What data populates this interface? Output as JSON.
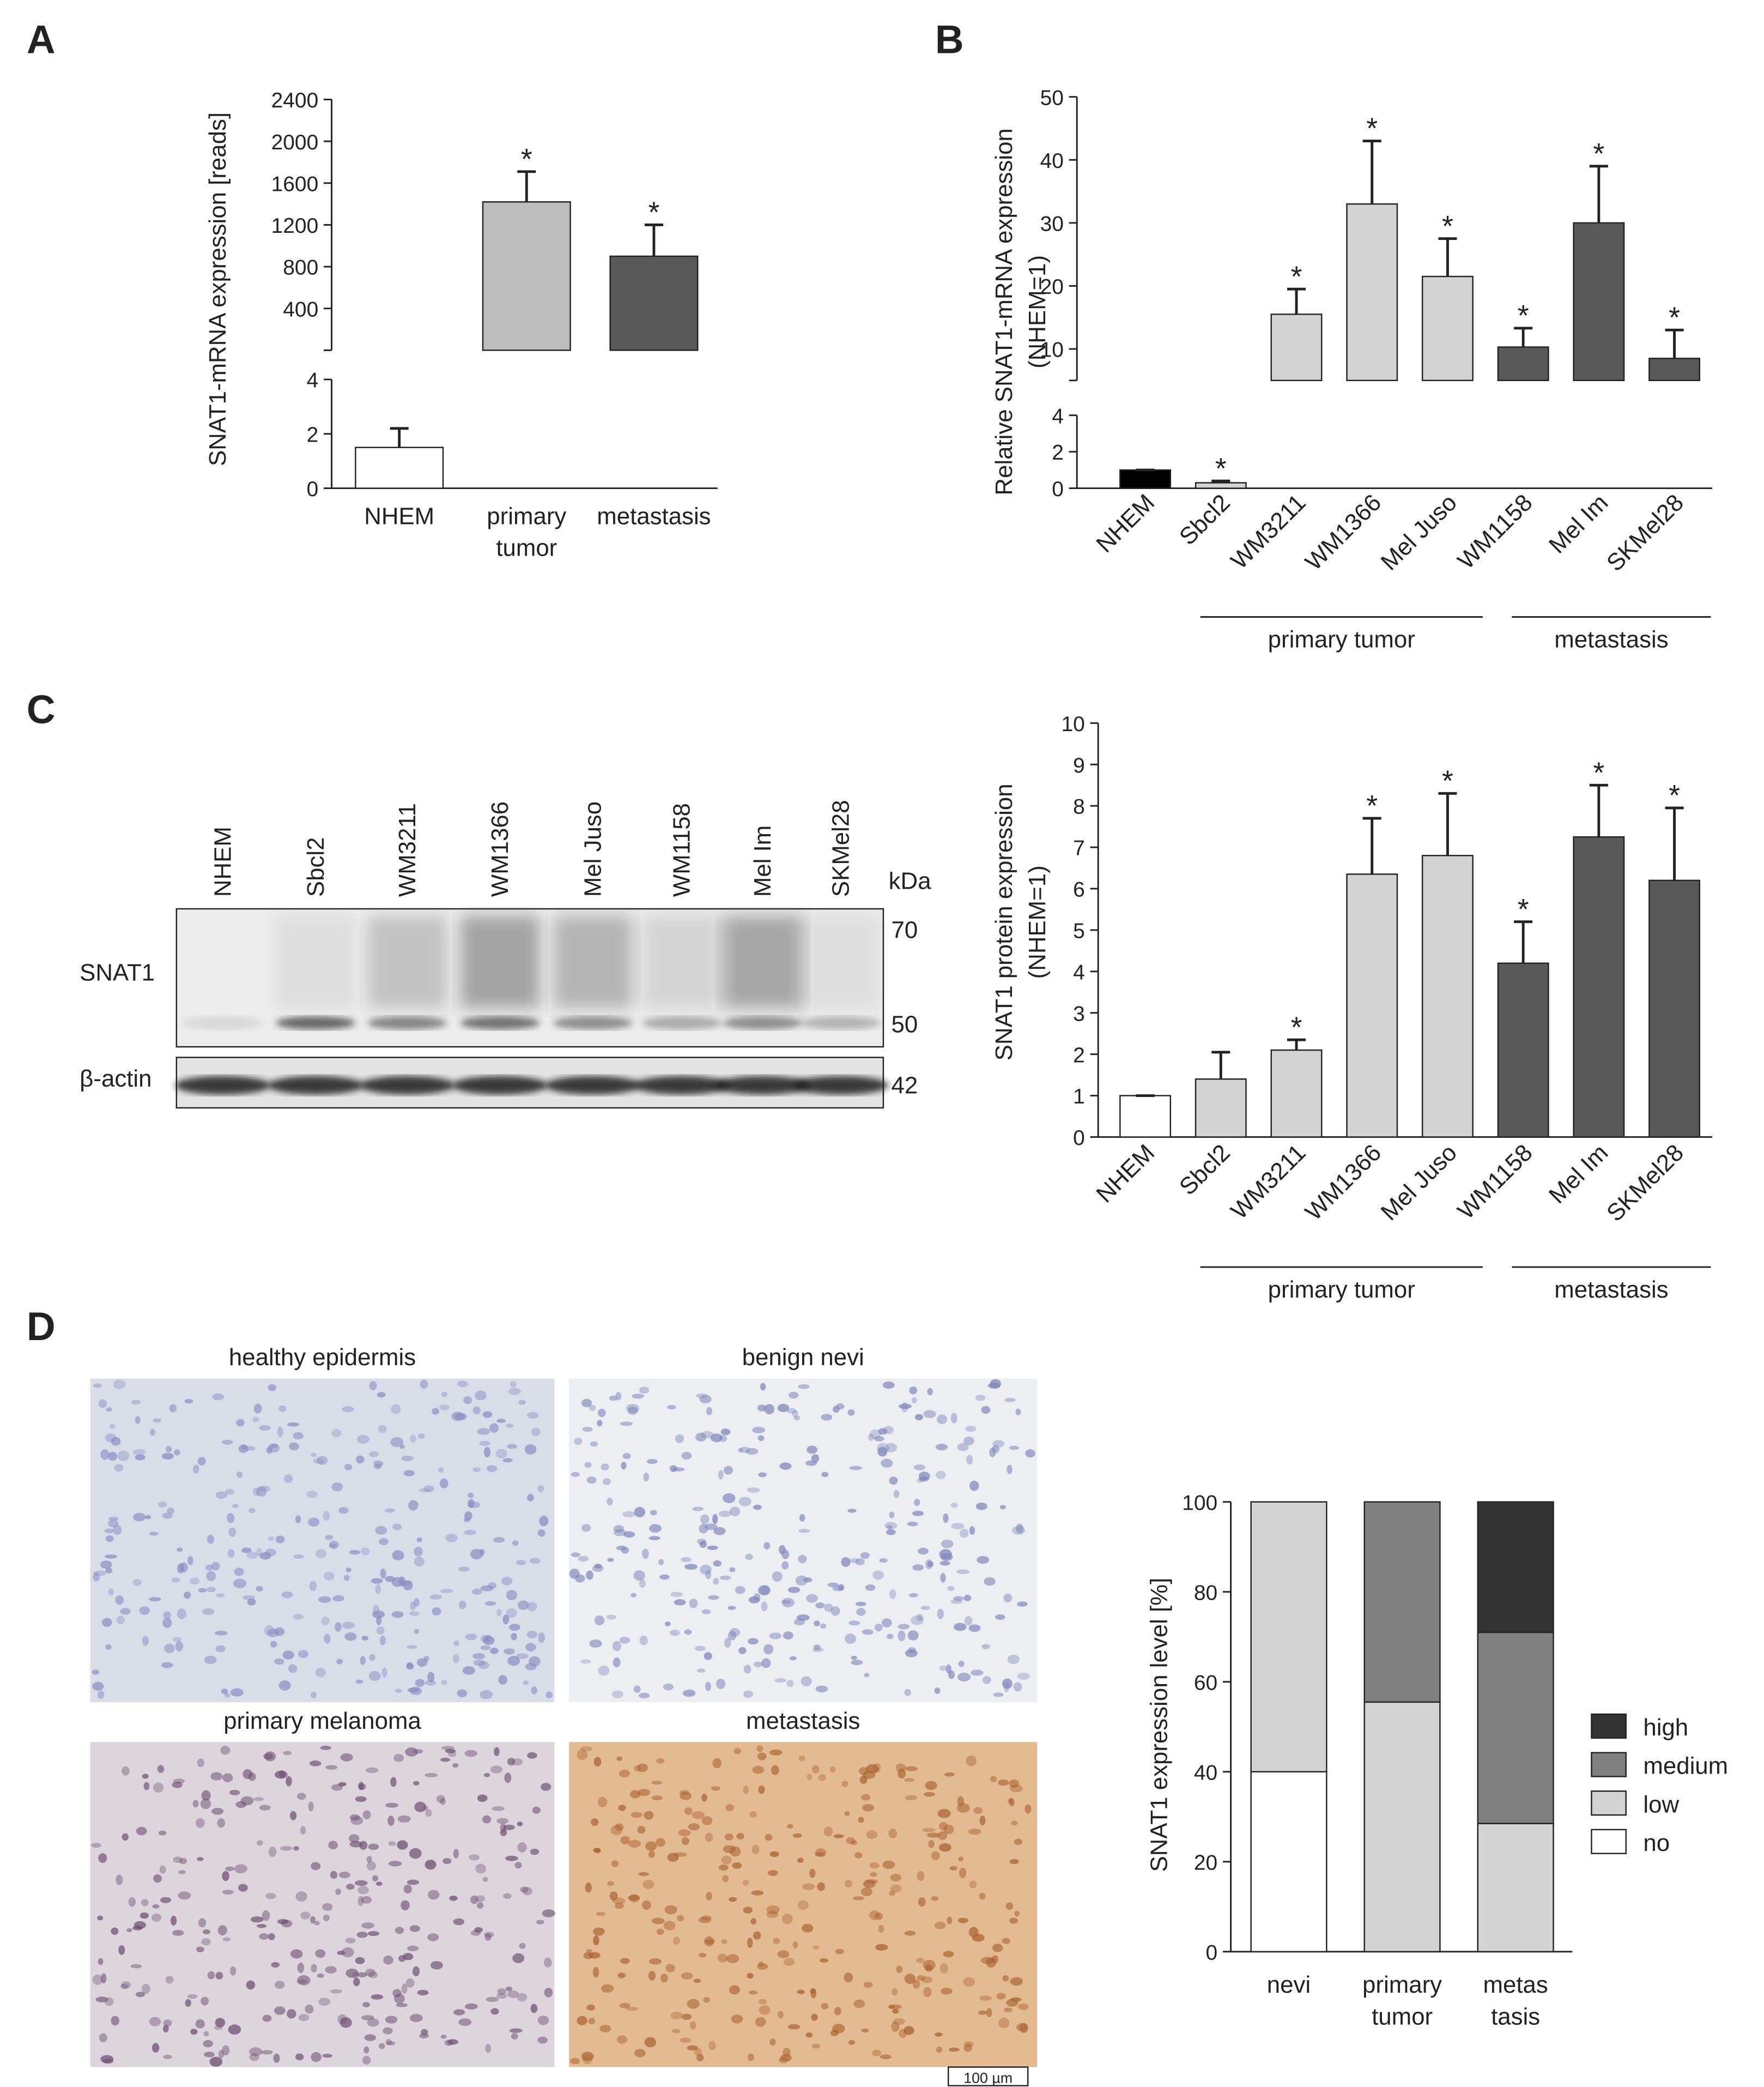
{
  "panel_labels": [
    "A",
    "B",
    "C",
    "D"
  ],
  "chart_data": [
    {
      "type": "bar",
      "broken_axis": true,
      "ylabel": [
        "SNAT1-mRNA expression [reads]"
      ],
      "categories": [
        [
          "NHEM"
        ],
        [
          "primary",
          "tumor"
        ],
        [
          "metastasis"
        ]
      ],
      "values": [
        1.5,
        1420,
        900
      ],
      "errors": [
        0.7,
        290,
        300
      ],
      "colors": [
        "#ffffff",
        "#bdbdbd",
        "#595959"
      ],
      "significance": [
        null,
        "*",
        "*"
      ],
      "ylim_lower": [
        0,
        4
      ],
      "yticks_lower": [
        0,
        2,
        4
      ],
      "ylim": [
        0,
        2400
      ],
      "yticks": [
        400,
        800,
        1200,
        1600,
        2000,
        2400
      ]
    },
    {
      "type": "bar",
      "broken_axis": true,
      "ylabel": [
        "Relative SNAT1-mRNA expression",
        "(NHEM=1)"
      ],
      "categories": [
        "NHEM",
        "Sbcl2",
        "WM3211",
        "WM1366",
        "Mel Juso",
        "WM1158",
        "Mel Im",
        "SKMel28"
      ],
      "values": [
        1,
        0.3,
        15.5,
        33,
        21.5,
        10.3,
        30,
        8.5
      ],
      "errors": [
        0,
        0.1,
        4,
        10,
        6,
        3,
        9,
        4.5
      ],
      "colors": [
        "#000000",
        "#d3d3d3",
        "#d3d3d3",
        "#d3d3d3",
        "#d3d3d3",
        "#595959",
        "#595959",
        "#595959"
      ],
      "significance": [
        null,
        "*",
        "*",
        "*",
        "*",
        "*",
        "*",
        "*"
      ],
      "groups": [
        "primary tumor",
        "metastasis"
      ],
      "ylim_lower": [
        0,
        4
      ],
      "yticks_lower": [
        0,
        2,
        4
      ],
      "ylim": [
        5,
        50
      ],
      "yticks": [
        10,
        20,
        30,
        40,
        50
      ]
    },
    {
      "type": "bar",
      "ylabel": [
        "SNAT1 protein expression",
        "(NHEM=1)"
      ],
      "categories": [
        "NHEM",
        "Sbcl2",
        "WM3211",
        "WM1366",
        "Mel Juso",
        "WM1158",
        "Mel Im",
        "SKMel28"
      ],
      "values": [
        1,
        1.4,
        2.1,
        6.35,
        6.8,
        4.2,
        7.25,
        6.2
      ],
      "errors": [
        0,
        0.65,
        0.25,
        1.35,
        1.5,
        1.0,
        1.25,
        1.75
      ],
      "colors": [
        "#ffffff",
        "#d3d3d3",
        "#d3d3d3",
        "#d3d3d3",
        "#d3d3d3",
        "#595959",
        "#595959",
        "#595959"
      ],
      "significance": [
        null,
        null,
        "*",
        "*",
        "*",
        "*",
        "*",
        "*"
      ],
      "groups": [
        "primary tumor",
        "metastasis"
      ],
      "ylim": [
        0,
        10
      ],
      "yticks": [
        0,
        1,
        2,
        3,
        4,
        5,
        6,
        7,
        8,
        9,
        10
      ]
    },
    {
      "type": "stacked_bar",
      "ylabel": [
        "SNAT1 expression level [%]"
      ],
      "categories": [
        [
          "nevi"
        ],
        [
          "primary",
          "tumor"
        ],
        [
          "metas",
          "tasis"
        ]
      ],
      "series": [
        {
          "name": "no",
          "color": "#ffffff",
          "values": [
            40,
            0,
            0
          ]
        },
        {
          "name": "low",
          "color": "#d3d3d3",
          "values": [
            60,
            55.5,
            28.5
          ]
        },
        {
          "name": "medium",
          "color": "#808080",
          "values": [
            0,
            44.5,
            42.5
          ]
        },
        {
          "name": "high",
          "color": "#333333",
          "values": [
            0,
            0,
            29
          ]
        }
      ],
      "ylim": [
        0,
        100
      ],
      "yticks": [
        0,
        20,
        40,
        60,
        80,
        100
      ]
    }
  ],
  "blot": {
    "lanes": [
      "NHEM",
      "Sbcl2",
      "WM3211",
      "WM1366",
      "Mel Juso",
      "WM1158",
      "Mel Im",
      "SKMel28"
    ],
    "unit": "kDa",
    "markers": [
      70,
      50,
      42
    ],
    "rows": [
      "SNAT1",
      "β-actin"
    ]
  },
  "histology": {
    "panels": [
      "healthy epidermis",
      "benign nevi",
      "primary melanoma",
      "metastasis"
    ],
    "scale_bar": "100 µm"
  }
}
